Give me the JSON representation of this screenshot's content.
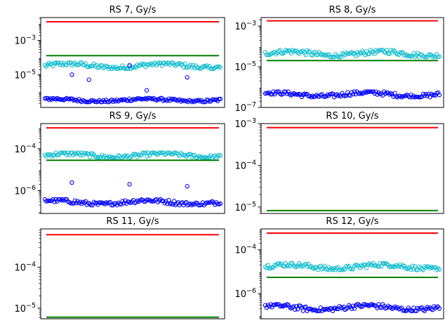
{
  "colors": {
    "red_line": "#ff0000",
    "green_line": "#008000",
    "cyan_points": "#17becf",
    "blue_points": "#0000ff"
  },
  "chart_data": [
    {
      "type": "scatter",
      "title": "RS 7, Gy/s",
      "yscale": "log",
      "ylim": [
        1.2e-07,
        0.022
      ],
      "yticks": [
        {
          "base": "10",
          "exp": "−5",
          "value": 1e-05
        },
        {
          "base": "10",
          "exp": "−3",
          "value": 0.001
        }
      ],
      "hlines": [
        {
          "color": "red",
          "value": 0.0125
        },
        {
          "color": "green",
          "value": 0.00013
        }
      ],
      "series": [
        {
          "color": "cyan",
          "band": [
            2.2e-05,
            5e-05
          ]
        },
        {
          "color": "blue",
          "band": [
            2.5e-07,
            4.2e-07
          ],
          "outliers": [
            1e-05,
            3.5e-05,
            7e-06,
            5e-06,
            1.2e-06
          ]
        }
      ]
    },
    {
      "type": "scatter",
      "title": "RS 8, Gy/s",
      "yscale": "log",
      "ylim": [
        1e-07,
        0.0026
      ],
      "yticks": [
        {
          "base": "10",
          "exp": "−7",
          "value": 1e-07
        },
        {
          "base": "10",
          "exp": "−5",
          "value": 1e-05
        },
        {
          "base": "10",
          "exp": "−3",
          "value": 0.001
        }
      ],
      "hlines": [
        {
          "color": "red",
          "value": 0.0018
        },
        {
          "color": "green",
          "value": 2e-05
        }
      ],
      "series": [
        {
          "color": "cyan",
          "band": [
            3e-05,
            6.5e-05
          ]
        },
        {
          "color": "blue",
          "band": [
            3.2e-07,
            6e-07
          ]
        }
      ]
    },
    {
      "type": "scatter",
      "title": "RS 9, Gy/s",
      "yscale": "log",
      "ylim": [
        8e-08,
        0.0016
      ],
      "yticks": [
        {
          "base": "10",
          "exp": "−6",
          "value": 1e-06
        },
        {
          "base": "10",
          "exp": "−4",
          "value": 0.0001
        }
      ],
      "hlines": [
        {
          "color": "red",
          "value": 0.001
        },
        {
          "color": "green",
          "value": 2.8e-05
        }
      ],
      "series": [
        {
          "color": "cyan",
          "band": [
            3.6e-05,
            6.5e-05
          ]
        },
        {
          "color": "blue",
          "band": [
            2e-07,
            3.8e-07
          ],
          "outliers": [
            2.4e-06,
            2e-06,
            1.6e-06
          ]
        }
      ]
    },
    {
      "type": "scatter",
      "title": "RS 10, Gy/s",
      "yscale": "log",
      "ylim": [
        7e-06,
        0.001
      ],
      "yticks": [
        {
          "base": "10",
          "exp": "−5",
          "value": 1e-05
        },
        {
          "base": "10",
          "exp": "−4",
          "value": 0.0001
        },
        {
          "base": "10",
          "exp": "−3",
          "value": 0.001
        }
      ],
      "hlines": [
        {
          "color": "red",
          "value": 0.0008
        },
        {
          "color": "green",
          "value": 8.2e-06
        }
      ],
      "series": []
    },
    {
      "type": "scatter",
      "title": "RS 11, Gy/s",
      "yscale": "log",
      "ylim": [
        5.5e-06,
        0.00086
      ],
      "yticks": [
        {
          "base": "10",
          "exp": "−5",
          "value": 1e-05
        },
        {
          "base": "10",
          "exp": "−4",
          "value": 0.0001
        }
      ],
      "hlines": [
        {
          "color": "red",
          "value": 0.00062
        },
        {
          "color": "green",
          "value": 6e-06
        }
      ],
      "series": []
    },
    {
      "type": "scatter",
      "title": "RS 12, Gy/s",
      "yscale": "log",
      "ylim": [
        7e-08,
        0.0009
      ],
      "yticks": [
        {
          "base": "10",
          "exp": "−6",
          "value": 1e-06
        },
        {
          "base": "10",
          "exp": "−4",
          "value": 0.0001
        }
      ],
      "hlines": [
        {
          "color": "red",
          "value": 0.00058
        },
        {
          "color": "green",
          "value": 5.5e-06
        }
      ],
      "series": [
        {
          "color": "cyan",
          "band": [
            1.2e-05,
            2.4e-05
          ]
        },
        {
          "color": "blue",
          "band": [
            1.6e-07,
            3.2e-07
          ]
        }
      ]
    }
  ]
}
